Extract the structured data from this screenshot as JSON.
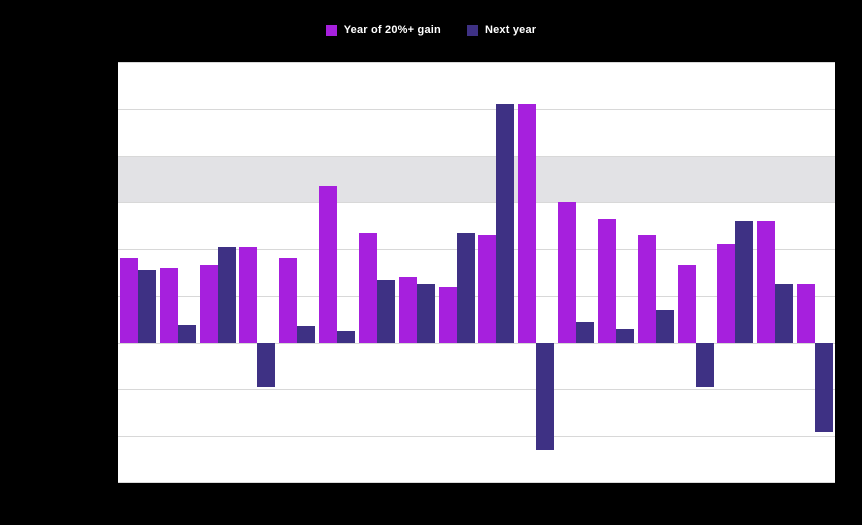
{
  "page": {
    "background_color": "#000000",
    "plot_background_color": "#ffffff"
  },
  "legend": {
    "position": "top-center"
  },
  "chart_data": {
    "type": "bar",
    "title": "",
    "x_axis_labels_visible": false,
    "y_axis_labels_visible": false,
    "ylim": [
      -30,
      60
    ],
    "grid_step": 10,
    "grid_on": true,
    "grid_color": "#d8d8d8",
    "highlight_band": {
      "from": 30,
      "to": 40,
      "color": "#e2e2e5"
    },
    "series": [
      {
        "name": "Year of 20%+ gain",
        "color": "#a620dd",
        "values": [
          18,
          16,
          16.5,
          20.5,
          18,
          33.5,
          23.5,
          14,
          12,
          23,
          51,
          30,
          26.5,
          23,
          16.5,
          21,
          26,
          12.5
        ]
      },
      {
        "name": "Next year",
        "color": "#3e3184",
        "values": [
          15.5,
          3.8,
          20.5,
          -9.5,
          3.5,
          2.5,
          13.5,
          12.5,
          23.5,
          51,
          -23,
          4.5,
          3,
          7,
          -9.5,
          26,
          12.5,
          -19
        ]
      }
    ]
  }
}
